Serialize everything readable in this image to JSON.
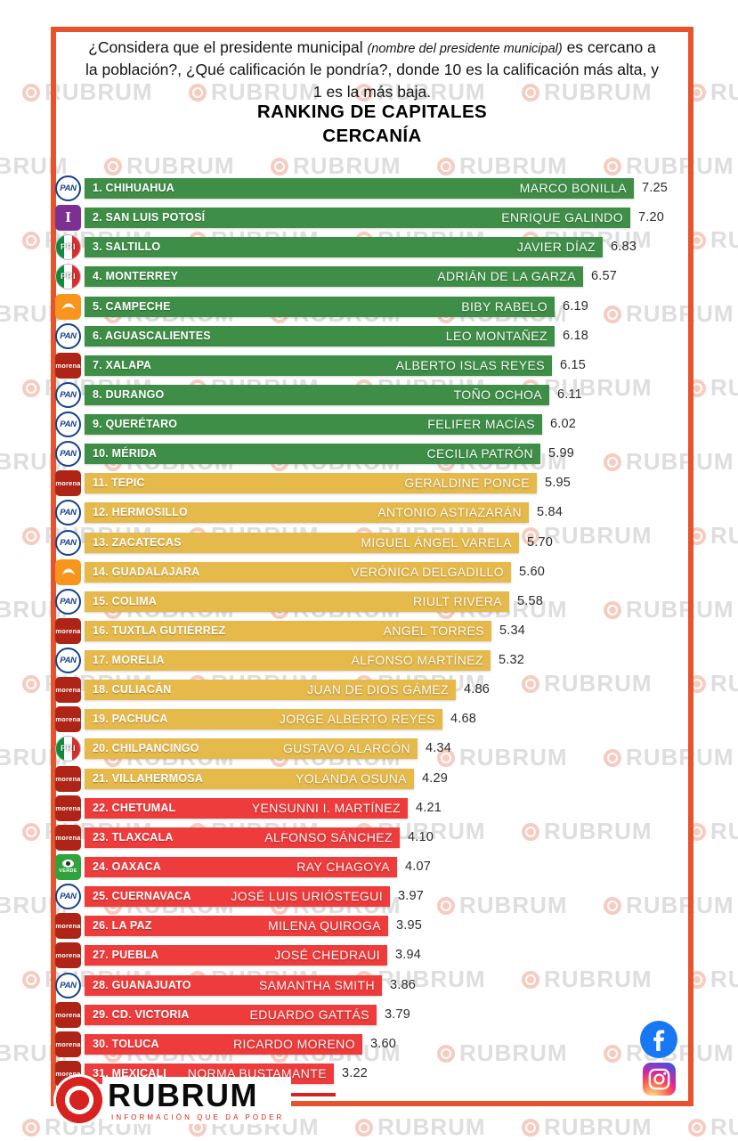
{
  "header": {
    "question_part1": "¿Considera que el presidente municipal",
    "question_note": "(nombre del presidente municipal)",
    "question_part2": "es cercano a la población?, ¿Qué calificación le pondría?, donde 10 es la calificación más alta, y 1 es la más baja.",
    "title_line1": "RANKING DE CAPITALES",
    "title_line2": "CERCANÍA"
  },
  "chart_data": {
    "type": "bar",
    "orientation": "horizontal",
    "title": "RANKING DE CAPITALES — CERCANÍA",
    "value_range": [
      1,
      10
    ],
    "tier_colors": {
      "green": "#3E8E47",
      "yellow": "#E5B94A",
      "red": "#EE3B3B"
    },
    "rows": [
      {
        "rank": 1,
        "city": "CHIHUAHUA",
        "mayor": "MARCO BONILLA",
        "score": "7.25",
        "party": "pan",
        "tier": "green"
      },
      {
        "rank": 2,
        "city": "SAN LUIS POTOSÍ",
        "mayor": "ENRIQUE GALINDO",
        "score": "7.20",
        "party": "ind",
        "tier": "green"
      },
      {
        "rank": 3,
        "city": "SALTILLO",
        "mayor": "JAVIER DÍAZ",
        "score": "6.83",
        "party": "pri",
        "tier": "green"
      },
      {
        "rank": 4,
        "city": "MONTERREY",
        "mayor": "ADRIÁN DE LA GARZA",
        "score": "6.57",
        "party": "pri",
        "tier": "green"
      },
      {
        "rank": 5,
        "city": "CAMPECHE",
        "mayor": "BIBY RABELO",
        "score": "6.19",
        "party": "mc",
        "tier": "green"
      },
      {
        "rank": 6,
        "city": "AGUASCALIENTES",
        "mayor": "LEO MONTAÑEZ",
        "score": "6.18",
        "party": "pan",
        "tier": "green"
      },
      {
        "rank": 7,
        "city": "XALAPA",
        "mayor": "ALBERTO ISLAS REYES",
        "score": "6.15",
        "party": "morena",
        "tier": "green"
      },
      {
        "rank": 8,
        "city": "DURANGO",
        "mayor": "TOÑO OCHOA",
        "score": "6.11",
        "party": "pan",
        "tier": "green"
      },
      {
        "rank": 9,
        "city": "QUERÉTARO",
        "mayor": "FELIFER MACÍAS",
        "score": "6.02",
        "party": "pan",
        "tier": "green"
      },
      {
        "rank": 10,
        "city": "MÉRIDA",
        "mayor": "CECILIA PATRÓN",
        "score": "5.99",
        "party": "pan",
        "tier": "green"
      },
      {
        "rank": 11,
        "city": "TEPIC",
        "mayor": "GERALDINE PONCE",
        "score": "5.95",
        "party": "morena",
        "tier": "yellow"
      },
      {
        "rank": 12,
        "city": "HERMOSILLO",
        "mayor": "ANTONIO ASTIAZARÁN",
        "score": "5.84",
        "party": "pan",
        "tier": "yellow"
      },
      {
        "rank": 13,
        "city": "ZACATECAS",
        "mayor": "MIGUEL ÁNGEL VARELA",
        "score": "5.70",
        "party": "pan",
        "tier": "yellow"
      },
      {
        "rank": 14,
        "city": "GUADALAJARA",
        "mayor": "VERÓNICA DELGADILLO",
        "score": "5.60",
        "party": "mc",
        "tier": "yellow"
      },
      {
        "rank": 15,
        "city": "COLIMA",
        "mayor": "RIULT RIVERA",
        "score": "5.58",
        "party": "pan",
        "tier": "yellow"
      },
      {
        "rank": 16,
        "city": "TUXTLA GUTIÉRREZ",
        "mayor": "ANGEL TORRES",
        "score": "5.34",
        "party": "morena",
        "tier": "yellow"
      },
      {
        "rank": 17,
        "city": "MORELIA",
        "mayor": "ALFONSO MARTÍNEZ",
        "score": "5.32",
        "party": "pan",
        "tier": "yellow"
      },
      {
        "rank": 18,
        "city": "CULIACÁN",
        "mayor": "JUAN DE DIOS GÁMEZ",
        "score": "4.86",
        "party": "morena",
        "tier": "yellow"
      },
      {
        "rank": 19,
        "city": "PACHUCA",
        "mayor": "JORGE ALBERTO REYES",
        "score": "4.68",
        "party": "morena",
        "tier": "yellow"
      },
      {
        "rank": 20,
        "city": "CHILPANCINGO",
        "mayor": "GUSTAVO ALARCÓN",
        "score": "4.34",
        "party": "pri",
        "tier": "yellow"
      },
      {
        "rank": 21,
        "city": "VILLAHERMOSA",
        "mayor": "YOLANDA OSUNA",
        "score": "4.29",
        "party": "morena",
        "tier": "yellow"
      },
      {
        "rank": 22,
        "city": "CHETUMAL",
        "mayor": "YENSUNNI I. MARTÍNEZ",
        "score": "4.21",
        "party": "morena",
        "tier": "red"
      },
      {
        "rank": 23,
        "city": "TLAXCALA",
        "mayor": "ALFONSO SÁNCHEZ",
        "score": "4.10",
        "party": "morena",
        "tier": "red"
      },
      {
        "rank": 24,
        "city": "OAXACA",
        "mayor": "RAY CHAGOYA",
        "score": "4.07",
        "party": "verde",
        "tier": "red"
      },
      {
        "rank": 25,
        "city": "CUERNAVACA",
        "mayor": "JOSÉ LUIS URIÓSTEGUI",
        "score": "3.97",
        "party": "pan",
        "tier": "red"
      },
      {
        "rank": 26,
        "city": "LA PAZ",
        "mayor": "MILENA QUIROGA",
        "score": "3.95",
        "party": "morena",
        "tier": "red"
      },
      {
        "rank": 27,
        "city": "PUEBLA",
        "mayor": "JOSÉ CHEDRAUI",
        "score": "3.94",
        "party": "morena",
        "tier": "red"
      },
      {
        "rank": 28,
        "city": "GUANAJUATO",
        "mayor": "SAMANTHA SMITH",
        "score": "3.86",
        "party": "pan",
        "tier": "red"
      },
      {
        "rank": 29,
        "city": "CD. VICTORIA",
        "mayor": "EDUARDO GATTÁS",
        "score": "3.79",
        "party": "morena",
        "tier": "red"
      },
      {
        "rank": 30,
        "city": "TOLUCA",
        "mayor": "RICARDO MORENO",
        "score": "3.60",
        "party": "morena",
        "tier": "red"
      },
      {
        "rank": 31,
        "city": "MEXICALI",
        "mayor": "NORMA BUSTAMANTE",
        "score": "3.22",
        "party": "morena",
        "tier": "red"
      }
    ]
  },
  "parties": {
    "pan": {
      "label": "PAN",
      "color": "#15418E"
    },
    "pri": {
      "label": "PRI",
      "colors": [
        "#0E8C3C",
        "#FFFFFF",
        "#DD2C2C"
      ]
    },
    "morena": {
      "label": "morena",
      "color": "#AE2518"
    },
    "mc": {
      "label": "MC",
      "color": "#F8951D"
    },
    "verde": {
      "label": "VERDE",
      "color": "#2FA43C"
    },
    "ind": {
      "label": "I",
      "color": "#7C3192"
    }
  },
  "watermark": {
    "text": "RUBRUM"
  },
  "footer": {
    "brand": "RUBRUM",
    "tagline": "INFORMACIÓN QUE DA PODER"
  },
  "social": {
    "icons": [
      "facebook",
      "instagram"
    ]
  },
  "colors": {
    "frame": "#E6532D",
    "brand_red": "#D6231F",
    "facebook_blue": "#1877F2"
  }
}
